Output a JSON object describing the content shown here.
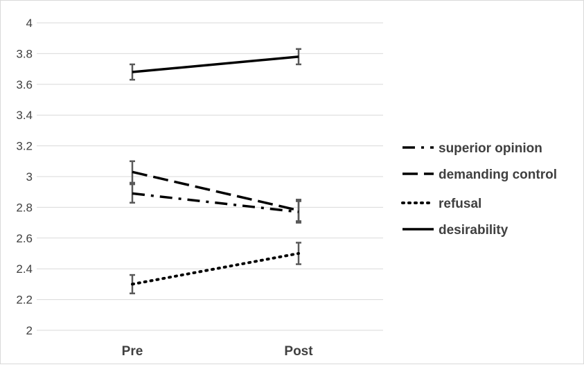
{
  "chart_data": {
    "type": "line",
    "title": "",
    "xlabel": "",
    "ylabel": "",
    "categories": [
      "Pre",
      "Post"
    ],
    "ylim": [
      2,
      4
    ],
    "yticks": [
      "4",
      "3.8",
      "3.6",
      "3.4",
      "3.2",
      "3",
      "2.8",
      "2.6",
      "2.4",
      "2.2",
      "2"
    ],
    "grid": true,
    "legend_position": "right",
    "series": [
      {
        "name": "superior opinion",
        "line_style": "long-dash-dot",
        "color": "#000000",
        "values": [
          2.89,
          2.77
        ],
        "error": [
          0.06,
          0.07
        ]
      },
      {
        "name": "demanding control",
        "line_style": "long-dash",
        "color": "#000000",
        "values": [
          3.03,
          2.78
        ],
        "error": [
          0.07,
          0.07
        ]
      },
      {
        "name": "refusal",
        "line_style": "dotted",
        "color": "#000000",
        "values": [
          2.3,
          2.5
        ],
        "error": [
          0.06,
          0.07
        ]
      },
      {
        "name": "desirability",
        "line_style": "solid",
        "color": "#000000",
        "values": [
          3.68,
          3.78
        ],
        "error": [
          0.05,
          0.05
        ]
      }
    ]
  }
}
